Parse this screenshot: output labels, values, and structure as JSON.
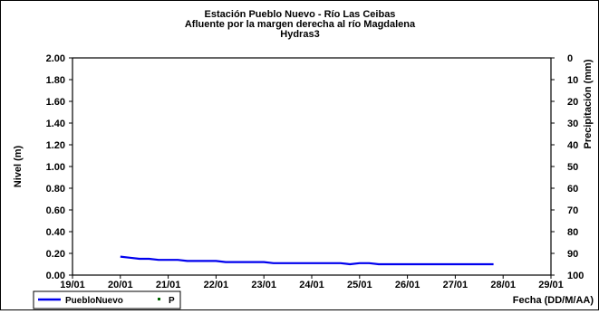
{
  "chart_data": {
    "type": "line",
    "title_lines": [
      "Estación Pueblo Nuevo - Río Las Ceibas",
      "Afluente por la margen derecha al río Magdalena",
      "Hydras3"
    ],
    "ylabel": "Nivel (m)",
    "y2label": "Precipitación (mm)",
    "xlabel": "Fecha (DD/M/AA)",
    "ylim": [
      0,
      2
    ],
    "y_ticks": [
      "2.00",
      "1.80",
      "1.60",
      "1.40",
      "1.20",
      "1.00",
      "0.80",
      "0.60",
      "0.40",
      "0.20",
      "0.00"
    ],
    "y2lim": [
      0,
      100
    ],
    "y2_inverted": true,
    "y2_ticks": [
      "0",
      "10",
      "20",
      "30",
      "40",
      "50",
      "60",
      "70",
      "80",
      "90",
      "100"
    ],
    "x_ticks": [
      "19/01",
      "20/01",
      "21/01",
      "22/01",
      "23/01",
      "24/01",
      "25/01",
      "26/01",
      "27/01",
      "28/01",
      "29/01"
    ],
    "xlim_days": [
      19,
      29
    ],
    "grid": false,
    "legend_position": "bottom-left",
    "series": [
      {
        "name": "PuebloNuevo",
        "color": "#0000ee",
        "x": [
          20.0,
          20.2,
          20.4,
          20.6,
          20.8,
          21.0,
          21.2,
          21.4,
          21.6,
          21.8,
          22.0,
          22.2,
          22.4,
          22.6,
          22.8,
          23.0,
          23.2,
          23.4,
          23.6,
          23.8,
          24.0,
          24.2,
          24.4,
          24.6,
          24.8,
          25.0,
          25.2,
          25.4,
          25.6,
          25.8,
          26.0,
          26.2,
          26.4,
          26.6,
          26.8,
          27.0,
          27.2,
          27.4,
          27.6,
          27.8
        ],
        "y": [
          0.17,
          0.16,
          0.15,
          0.15,
          0.14,
          0.14,
          0.14,
          0.13,
          0.13,
          0.13,
          0.13,
          0.12,
          0.12,
          0.12,
          0.12,
          0.12,
          0.11,
          0.11,
          0.11,
          0.11,
          0.11,
          0.11,
          0.11,
          0.11,
          0.1,
          0.11,
          0.11,
          0.1,
          0.1,
          0.1,
          0.1,
          0.1,
          0.1,
          0.1,
          0.1,
          0.1,
          0.1,
          0.1,
          0.1,
          0.1
        ]
      },
      {
        "name": "P",
        "color": "#006400",
        "x": [],
        "y": []
      }
    ]
  }
}
